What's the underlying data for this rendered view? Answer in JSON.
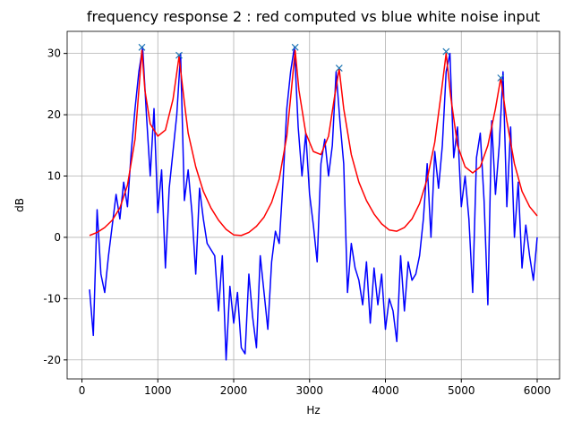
{
  "chart_data": {
    "type": "line",
    "title": "frequency response 2 : red computed vs blue white noise input",
    "xlabel": "Hz",
    "ylabel": "dB",
    "xlim": [
      -195,
      6295
    ],
    "ylim": [
      -23.1,
      33.6
    ],
    "xticks": [
      0,
      1000,
      2000,
      3000,
      4000,
      5000,
      6000
    ],
    "yticks": [
      -20,
      -10,
      0,
      10,
      20,
      30
    ],
    "grid": true,
    "series": [
      {
        "color": "#0000ff",
        "x": [
          100,
          150,
          200,
          250,
          300,
          350,
          400,
          450,
          500,
          550,
          600,
          650,
          700,
          750,
          800,
          850,
          900,
          950,
          1000,
          1050,
          1100,
          1150,
          1200,
          1250,
          1300,
          1350,
          1400,
          1450,
          1500,
          1550,
          1600,
          1650,
          1700,
          1750,
          1800,
          1850,
          1900,
          1950,
          2000,
          2050,
          2100,
          2150,
          2200,
          2250,
          2300,
          2350,
          2400,
          2450,
          2500,
          2550,
          2600,
          2650,
          2700,
          2750,
          2800,
          2850,
          2900,
          2950,
          3000,
          3050,
          3100,
          3150,
          3200,
          3250,
          3300,
          3350,
          3400,
          3450,
          3500,
          3550,
          3600,
          3650,
          3700,
          3750,
          3800,
          3850,
          3900,
          3950,
          4000,
          4050,
          4100,
          4150,
          4200,
          4250,
          4300,
          4350,
          4400,
          4450,
          4500,
          4550,
          4600,
          4650,
          4700,
          4750,
          4800,
          4850,
          4900,
          4950,
          5000,
          5050,
          5100,
          5150,
          5200,
          5250,
          5300,
          5350,
          5400,
          5450,
          5500,
          5550,
          5600,
          5650,
          5700,
          5750,
          5800,
          5850,
          5900,
          5950,
          6000
        ],
        "values": [
          -8.5,
          -16,
          4.5,
          -6,
          -9,
          -3,
          2,
          7,
          3,
          9,
          5,
          14,
          21,
          27,
          31,
          20,
          10,
          21,
          4,
          11,
          -5,
          8,
          14,
          20,
          30,
          6,
          11,
          4,
          -6,
          8,
          3,
          -1,
          -2,
          -3,
          -12,
          -3,
          -20,
          -8,
          -14,
          -9,
          -18,
          -19,
          -6,
          -13,
          -18,
          -3,
          -9,
          -15,
          -4,
          1,
          -1,
          9,
          21,
          27,
          31,
          18,
          10,
          17,
          7,
          2,
          -4,
          12,
          16,
          10,
          15,
          27,
          19,
          12,
          -9,
          -1,
          -5,
          -7,
          -11,
          -4,
          -14,
          -5,
          -11,
          -6,
          -15,
          -10,
          -12,
          -17,
          -3,
          -12,
          -4,
          -7,
          -6,
          -3,
          3,
          12,
          0,
          14,
          8,
          15,
          27,
          30,
          13,
          18,
          5,
          10,
          3,
          -9,
          13,
          17,
          6,
          -11,
          19,
          7,
          15,
          27,
          5,
          18,
          0,
          9,
          -5,
          2,
          -3,
          -7,
          0
        ]
      },
      {
        "color": "#ff0000",
        "x": [
          100,
          200,
          300,
          400,
          500,
          600,
          700,
          750,
          790,
          830,
          900,
          1000,
          1100,
          1200,
          1280,
          1350,
          1400,
          1500,
          1600,
          1700,
          1800,
          1900,
          2000,
          2100,
          2200,
          2300,
          2400,
          2500,
          2600,
          2700,
          2760,
          2810,
          2860,
          2950,
          3050,
          3150,
          3250,
          3330,
          3390,
          3450,
          3550,
          3650,
          3750,
          3850,
          3950,
          4050,
          4150,
          4250,
          4350,
          4450,
          4550,
          4650,
          4740,
          4800,
          4860,
          4950,
          5050,
          5150,
          5250,
          5350,
          5450,
          5520,
          5600,
          5700,
          5800,
          5900,
          6000
        ],
        "values": [
          0.3,
          0.8,
          1.6,
          2.8,
          4.8,
          8.5,
          16,
          24,
          30.5,
          24,
          18.5,
          16.5,
          17.5,
          22.5,
          29.5,
          22,
          17,
          11.5,
          7.5,
          4.8,
          2.8,
          1.3,
          0.4,
          0.3,
          0.8,
          1.8,
          3.3,
          5.7,
          9.5,
          16.5,
          24,
          30.5,
          24,
          17,
          14,
          13.5,
          16.5,
          23,
          27.5,
          21,
          13.5,
          9,
          6,
          3.8,
          2.2,
          1.2,
          1.0,
          1.6,
          3.0,
          5.5,
          9.5,
          15.5,
          24,
          30,
          23,
          15,
          11.5,
          10.5,
          11.5,
          15,
          21,
          26,
          19,
          12,
          7.5,
          5,
          3.5
        ]
      },
      {
        "color": "#1f77b4",
        "marker": "x",
        "x": [
          790,
          1280,
          2810,
          3390,
          4800,
          5520
        ],
        "values": [
          31,
          29.7,
          31,
          27.6,
          30.3,
          26
        ]
      }
    ]
  }
}
